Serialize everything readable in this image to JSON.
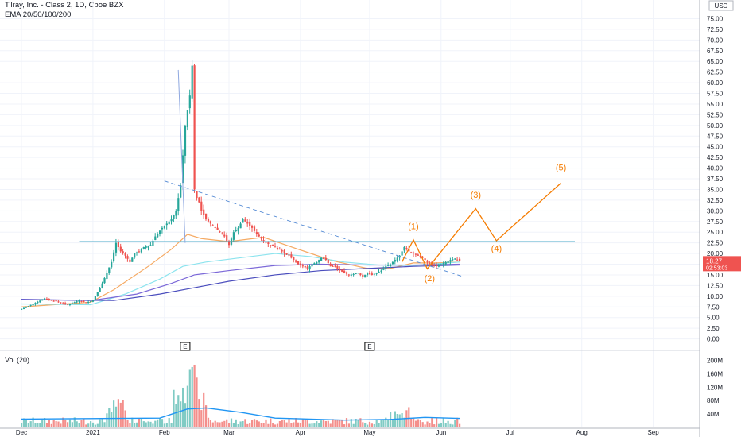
{
  "header": {
    "symbol": "Tilray, Inc. - Class 2, 1D, Cboe BZX",
    "indicator": "EMA 20/50/100/200"
  },
  "volume_pane": {
    "label": "Vol (20)"
  },
  "price_axis": {
    "currency": "USD"
  },
  "colors": {
    "up": "#26a69a",
    "down": "#ef5350",
    "vol_up": "#80cbc4",
    "vol_down": "#f48f8c",
    "ema20": "#f5a962",
    "ema50": "#8de4ee",
    "ema100": "#7b68d8",
    "ema200": "#4a4dbd",
    "wave": "#f57c00",
    "hline": "#4aa8c9",
    "trend": "#5b8fd6",
    "vol_ma": "#2196f3"
  },
  "price_label": {
    "value": "18.27",
    "sub": "02:53:03"
  },
  "earnings_markers": [
    "E",
    "E"
  ],
  "waves": [
    "(1)",
    "(2)",
    "(3)",
    "(4)",
    "(5)"
  ],
  "chart_data": {
    "type": "candlestick",
    "ylim": [
      -2.5,
      77.5
    ],
    "y_ticks": [
      "75.00",
      "72.50",
      "70.00",
      "67.50",
      "65.00",
      "62.50",
      "60.00",
      "57.50",
      "55.00",
      "52.50",
      "50.00",
      "47.50",
      "45.00",
      "42.50",
      "40.00",
      "37.50",
      "35.00",
      "32.50",
      "30.00",
      "27.50",
      "25.00",
      "22.50",
      "20.00",
      "17.50",
      "15.00",
      "12.50",
      "10.00",
      "7.50",
      "5.00",
      "2.50",
      "0.00"
    ],
    "x_ticks": [
      "Dec",
      "2021",
      "Feb",
      "Mar",
      "Apr",
      "May",
      "Jun",
      "Jul",
      "Aug",
      "Sep"
    ],
    "x_tick_days": [
      0,
      31,
      62,
      90,
      121,
      151,
      182,
      212,
      243,
      274
    ],
    "volume_ticks": [
      "200M",
      "160M",
      "120M",
      "80M",
      "40M"
    ],
    "volume_ylim": [
      0,
      220
    ],
    "series": [
      {
        "name": "price",
        "points": [
          [
            0,
            7.0
          ],
          [
            5,
            8.2
          ],
          [
            10,
            9.5
          ],
          [
            15,
            8.8
          ],
          [
            20,
            8.0
          ],
          [
            25,
            9.0
          ],
          [
            28,
            8.5
          ],
          [
            31,
            9.0
          ],
          [
            33,
            11.0
          ],
          [
            35,
            13.0
          ],
          [
            37,
            15.5
          ],
          [
            39,
            18.0
          ],
          [
            41,
            22.5
          ],
          [
            43,
            20.5
          ],
          [
            45,
            19.5
          ],
          [
            47,
            18.0
          ],
          [
            49,
            20.0
          ],
          [
            51,
            20.5
          ],
          [
            53,
            21.5
          ],
          [
            56,
            22.0
          ],
          [
            58,
            24.0
          ],
          [
            61,
            26.0
          ],
          [
            63,
            27.0
          ],
          [
            65,
            28.0
          ],
          [
            67,
            30.0
          ],
          [
            69,
            36.0
          ],
          [
            71,
            50.0
          ],
          [
            73,
            57.0
          ],
          [
            74,
            64.0
          ],
          [
            75,
            35.0
          ],
          [
            76,
            33.0
          ],
          [
            77,
            32.0
          ],
          [
            78,
            30.0
          ],
          [
            80,
            28.0
          ],
          [
            82,
            27.0
          ],
          [
            84,
            26.0
          ],
          [
            86,
            25.0
          ],
          [
            88,
            24.0
          ],
          [
            90,
            22.0
          ],
          [
            92,
            25.0
          ],
          [
            94,
            26.0
          ],
          [
            96,
            28.0
          ],
          [
            98,
            27.0
          ],
          [
            100,
            26.0
          ],
          [
            102,
            24.5
          ],
          [
            104,
            23.5
          ],
          [
            106,
            22.5
          ],
          [
            108,
            22.0
          ],
          [
            110,
            21.5
          ],
          [
            112,
            21.0
          ],
          [
            114,
            20.0
          ],
          [
            116,
            19.5
          ],
          [
            118,
            18.5
          ],
          [
            120,
            17.5
          ],
          [
            122,
            17.0
          ],
          [
            124,
            16.5
          ],
          [
            126,
            17.5
          ],
          [
            128,
            18.0
          ],
          [
            130,
            19.0
          ],
          [
            132,
            18.5
          ],
          [
            134,
            17.0
          ],
          [
            136,
            17.0
          ],
          [
            138,
            16.0
          ],
          [
            140,
            15.5
          ],
          [
            142,
            15.0
          ],
          [
            144,
            15.2
          ],
          [
            146,
            15.5
          ],
          [
            148,
            14.5
          ],
          [
            150,
            15.5
          ],
          [
            152,
            15.0
          ],
          [
            154,
            15.5
          ],
          [
            156,
            16.0
          ],
          [
            158,
            17.0
          ],
          [
            160,
            17.5
          ],
          [
            162,
            18.5
          ],
          [
            164,
            19.5
          ],
          [
            166,
            21.5
          ],
          [
            168,
            20.5
          ],
          [
            170,
            20.0
          ],
          [
            172,
            19.5
          ],
          [
            174,
            19.0
          ],
          [
            176,
            18.0
          ],
          [
            178,
            17.5
          ],
          [
            180,
            17.0
          ],
          [
            182,
            17.5
          ],
          [
            184,
            18.0
          ],
          [
            186,
            18.5
          ],
          [
            188,
            18.8
          ],
          [
            190,
            18.3
          ]
        ]
      },
      {
        "name": "EMA 20",
        "points": [
          [
            0,
            7.5
          ],
          [
            30,
            8.6
          ],
          [
            40,
            11.5
          ],
          [
            55,
            17.0
          ],
          [
            65,
            21.0
          ],
          [
            72,
            24.5
          ],
          [
            78,
            23.5
          ],
          [
            90,
            22.8
          ],
          [
            105,
            23.8
          ],
          [
            120,
            21.0
          ],
          [
            135,
            18.3
          ],
          [
            150,
            16.5
          ],
          [
            160,
            16.5
          ],
          [
            170,
            17.8
          ],
          [
            180,
            17.8
          ],
          [
            190,
            18.0
          ]
        ]
      },
      {
        "name": "EMA 50",
        "points": [
          [
            0,
            8.2
          ],
          [
            30,
            8.0
          ],
          [
            45,
            10.5
          ],
          [
            60,
            14.0
          ],
          [
            70,
            17.0
          ],
          [
            80,
            18.0
          ],
          [
            95,
            19.0
          ],
          [
            110,
            20.0
          ],
          [
            125,
            19.3
          ],
          [
            140,
            18.0
          ],
          [
            155,
            17.3
          ],
          [
            170,
            17.2
          ],
          [
            180,
            17.6
          ],
          [
            190,
            18.0
          ]
        ]
      },
      {
        "name": "EMA 100",
        "points": [
          [
            0,
            9.3
          ],
          [
            30,
            9.0
          ],
          [
            50,
            10.5
          ],
          [
            65,
            13.0
          ],
          [
            75,
            15.0
          ],
          [
            90,
            16.0
          ],
          [
            110,
            17.2
          ],
          [
            130,
            17.5
          ],
          [
            150,
            17.3
          ],
          [
            170,
            17.3
          ],
          [
            190,
            17.5
          ]
        ]
      },
      {
        "name": "EMA 200",
        "points": [
          [
            0,
            9.2
          ],
          [
            40,
            9.0
          ],
          [
            60,
            10.5
          ],
          [
            75,
            12.0
          ],
          [
            90,
            13.5
          ],
          [
            110,
            15.0
          ],
          [
            130,
            16.0
          ],
          [
            150,
            16.5
          ],
          [
            170,
            17.0
          ],
          [
            190,
            17.3
          ]
        ]
      }
    ],
    "horizontal_line": 22.8,
    "trendline": [
      [
        62,
        37.0
      ],
      [
        192,
        14.5
      ]
    ],
    "wave_projection": [
      [
        165,
        18.0
      ],
      [
        170,
        23.2
      ],
      [
        176,
        16.4
      ],
      [
        197,
        30.5
      ],
      [
        206,
        23.0
      ],
      [
        234,
        36.5
      ]
    ],
    "wave_labels": [
      [
        "(1)",
        170,
        25.7
      ],
      [
        "(2)",
        177,
        13.5
      ],
      [
        "(3)",
        197,
        33.0
      ],
      [
        "(4)",
        206,
        20.5
      ],
      [
        "(5)",
        234,
        39.5
      ]
    ]
  }
}
